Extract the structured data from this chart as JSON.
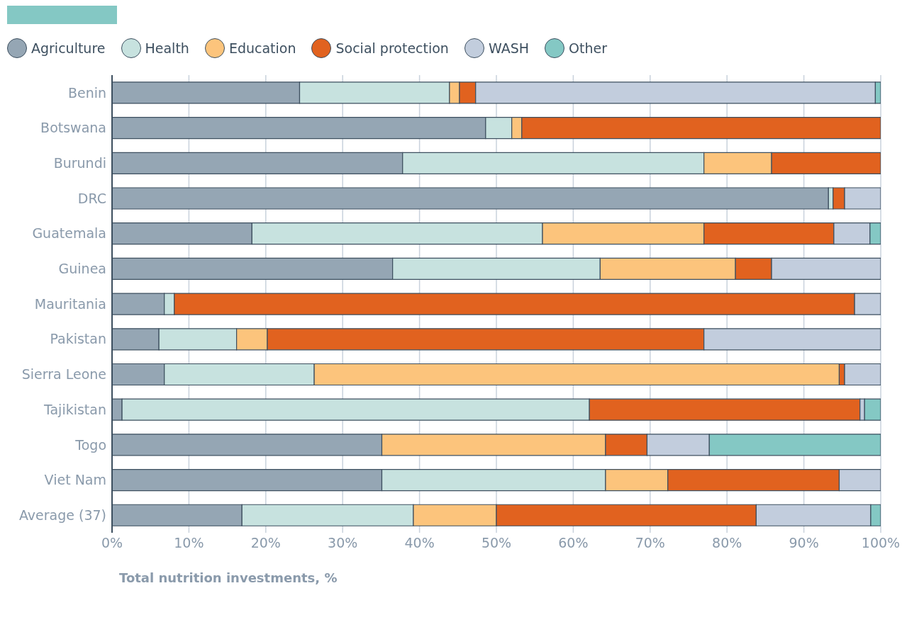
{
  "chart_data": {
    "type": "bar",
    "orientation": "horizontal",
    "stacked": true,
    "xlabel": "Total nutrition investments, %",
    "categories": [
      "Benin",
      "Botswana",
      "Burundi",
      "DRC",
      "Guatemala",
      "Guinea",
      "Mauritania",
      "Pakistan",
      "Sierra Leone",
      "Tajikistan",
      "Togo",
      "Viet Nam",
      "Average (37)"
    ],
    "series": [
      {
        "name": "Agriculture",
        "color": "#95a6b4",
        "values": [
          24.4,
          48.6,
          37.8,
          93.2,
          18.2,
          36.5,
          6.8,
          6.1,
          6.8,
          1.3,
          35.1,
          35.1,
          16.9
        ]
      },
      {
        "name": "Health",
        "color": "#c7e2df",
        "values": [
          19.5,
          3.4,
          39.2,
          0.6,
          37.8,
          27.0,
          1.3,
          10.1,
          19.5,
          60.8,
          null,
          29.1,
          22.3
        ]
      },
      {
        "name": "Education",
        "color": "#fcc47c",
        "values": [
          1.3,
          1.3,
          8.8,
          null,
          21.0,
          17.6,
          null,
          4.0,
          68.3,
          null,
          29.1,
          8.1,
          10.8
        ]
      },
      {
        "name": "Social protection",
        "color": "#e1621f",
        "values": [
          2.1,
          46.7,
          14.2,
          1.5,
          16.9,
          4.7,
          88.5,
          56.8,
          0.7,
          35.2,
          5.4,
          22.3,
          33.8
        ]
      },
      {
        "name": "WASH",
        "color": "#c2cddd",
        "values": [
          52.0,
          null,
          null,
          4.7,
          4.7,
          14.2,
          3.4,
          23.0,
          4.7,
          0.6,
          8.1,
          5.4,
          14.9
        ]
      },
      {
        "name": "Other",
        "color": "#84c8c4",
        "values": [
          0.7,
          null,
          null,
          null,
          1.4,
          null,
          null,
          null,
          null,
          2.1,
          22.3,
          null,
          1.3
        ]
      }
    ],
    "xlim": [
      0,
      100
    ],
    "xticks": [
      {
        "value": 0,
        "label": "0%"
      },
      {
        "value": 10,
        "label": "10%"
      },
      {
        "value": 20,
        "label": "20%"
      },
      {
        "value": 30,
        "label": "30%"
      },
      {
        "value": 40,
        "label": "40%"
      },
      {
        "value": 50,
        "label": "50%"
      },
      {
        "value": 60,
        "label": "60%"
      },
      {
        "value": 70,
        "label": "70%"
      },
      {
        "value": 80,
        "label": "80%"
      },
      {
        "value": 90,
        "label": "90%"
      },
      {
        "value": 100,
        "label": "100%"
      }
    ],
    "grid": "x",
    "legend": "top left"
  }
}
